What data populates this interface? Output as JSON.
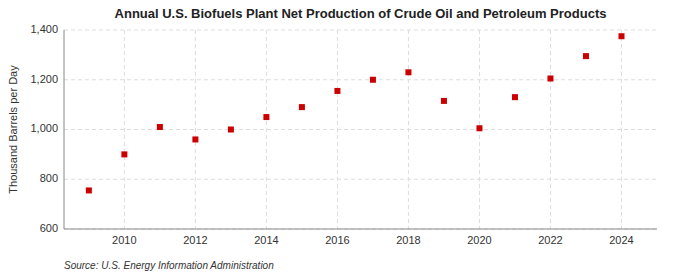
{
  "chart_data": {
    "type": "scatter",
    "title": "Annual U.S. Biofuels Plant Net Production of Crude Oil and Petroleum Products",
    "y_label": "Thousand Barrels per Day",
    "annotations": [
      "Source: U.S. Energy Information Administration"
    ],
    "x": [
      2009,
      2010,
      2011,
      2012,
      2013,
      2014,
      2015,
      2016,
      2017,
      2018,
      2019,
      2020,
      2021,
      2022,
      2023,
      2024
    ],
    "values": [
      755,
      900,
      1010,
      960,
      1000,
      1050,
      1090,
      1155,
      1200,
      1230,
      1115,
      1005,
      1130,
      1205,
      1295,
      1375
    ],
    "color": "#cc0000",
    "marker": "square",
    "xlim": [
      2008.3,
      2025
    ],
    "xticks": [
      2010,
      2012,
      2014,
      2016,
      2018,
      2020,
      2022,
      2024
    ],
    "ylim": [
      600,
      1400
    ],
    "yticks": [
      600,
      800,
      {
        "value": 1000,
        "label": "1,000"
      },
      {
        "value": 1200,
        "label": "1,200"
      },
      {
        "value": 1400,
        "label": "1,400"
      }
    ],
    "grid": true
  }
}
